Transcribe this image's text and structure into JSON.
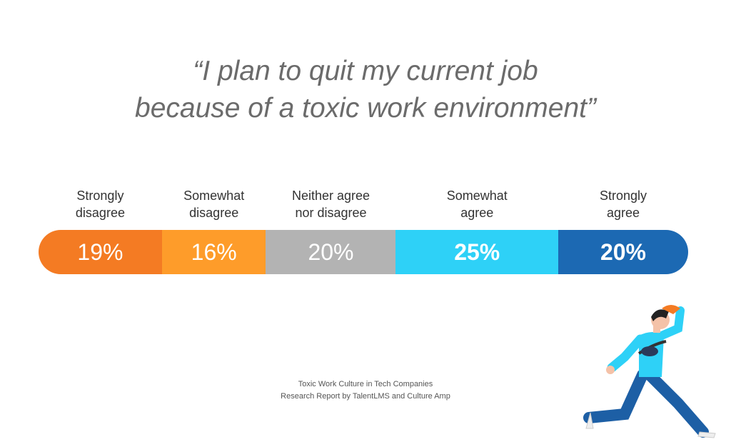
{
  "chart_data": {
    "type": "bar",
    "orientation": "horizontal-stacked",
    "title": [
      "“I plan to quit my current job",
      "because of a toxic work environment”"
    ],
    "categories": [
      [
        "Strongly",
        "disagree"
      ],
      [
        "Somewhat",
        "disagree"
      ],
      [
        "Neither agree",
        "nor disagree"
      ],
      [
        "Somewhat",
        "agree"
      ],
      [
        "Strongly",
        "agree"
      ]
    ],
    "values": [
      19,
      16,
      20,
      25,
      20
    ],
    "value_labels": [
      "19%",
      "16%",
      "20%",
      "25%",
      "20%"
    ],
    "colors": [
      "#f47b23",
      "#fe9c2a",
      "#b3b3b3",
      "#2ed1f7",
      "#1c69b3"
    ],
    "unit": "%"
  },
  "source": [
    "Toxic Work Culture in Tech Companies",
    "Research Report by TalentLMS and Culture Amp"
  ],
  "illustration": "running-man"
}
